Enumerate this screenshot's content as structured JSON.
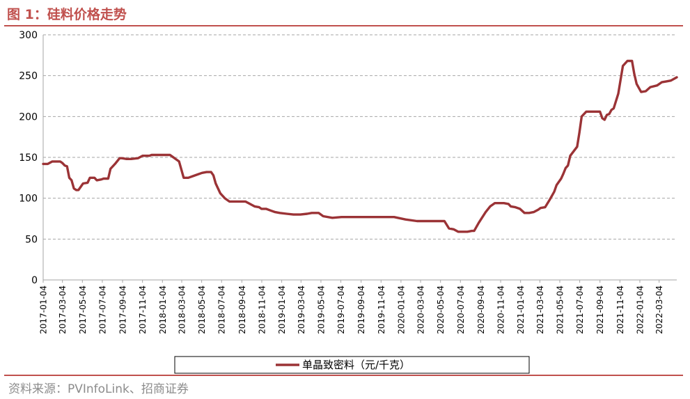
{
  "figure": {
    "title": "图 1：硅料价格走势",
    "source": "资料来源：PVInfoLink、招商证券"
  },
  "colors": {
    "series": "#9b3336",
    "accent": "#c0504d",
    "grid": "#a6a6a6"
  },
  "chart_data": {
    "type": "line",
    "title": "",
    "xlabel": "",
    "ylabel": "",
    "ylim": [
      0,
      300
    ],
    "yticks": [
      0,
      50,
      100,
      150,
      200,
      250,
      300
    ],
    "xlim": [
      "2017-01-04",
      "2022-04-27"
    ],
    "x_tick_labels": [
      "2017-01-04",
      "2017-03-04",
      "2017-05-04",
      "2017-07-04",
      "2017-09-04",
      "2017-11-04",
      "2018-01-04",
      "2018-03-04",
      "2018-05-04",
      "2018-07-04",
      "2018-09-04",
      "2018-11-04",
      "2019-01-04",
      "2019-03-04",
      "2019-05-04",
      "2019-07-04",
      "2019-09-04",
      "2019-11-04",
      "2020-01-04",
      "2020-03-04",
      "2020-05-04",
      "2020-07-04",
      "2020-09-04",
      "2020-11-04",
      "2021-01-04",
      "2021-03-04",
      "2021-05-04",
      "2021-07-04",
      "2021-09-04",
      "2021-11-04",
      "2022-01-04",
      "2022-03-04"
    ],
    "grid": "horizontal dashed",
    "legend": "bottom",
    "series": [
      {
        "name": "单晶致密料（元/千克）",
        "x": [
          "2017-01-04",
          "2017-01-18",
          "2017-02-01",
          "2017-02-25",
          "2017-03-04",
          "2017-03-11",
          "2017-03-18",
          "2017-03-25",
          "2017-04-01",
          "2017-04-08",
          "2017-04-15",
          "2017-04-22",
          "2017-05-06",
          "2017-05-20",
          "2017-05-27",
          "2017-06-10",
          "2017-06-17",
          "2017-07-01",
          "2017-07-08",
          "2017-07-22",
          "2017-07-29",
          "2017-08-12",
          "2017-08-26",
          "2017-09-02",
          "2017-09-16",
          "2017-09-30",
          "2017-10-21",
          "2017-11-04",
          "2017-11-25",
          "2017-12-02",
          "2018-01-13",
          "2018-01-27",
          "2018-02-03",
          "2018-02-24",
          "2018-03-03",
          "2018-03-10",
          "2018-03-24",
          "2018-04-07",
          "2018-04-21",
          "2018-05-05",
          "2018-05-19",
          "2018-06-02",
          "2018-06-09",
          "2018-06-16",
          "2018-06-30",
          "2018-07-14",
          "2018-07-28",
          "2018-08-25",
          "2018-09-08",
          "2018-09-15",
          "2018-09-29",
          "2018-10-13",
          "2018-10-27",
          "2018-11-03",
          "2018-11-17",
          "2018-12-01",
          "2018-12-15",
          "2018-12-29",
          "2019-01-19",
          "2019-02-09",
          "2019-02-23",
          "2019-03-02",
          "2019-03-23",
          "2019-04-06",
          "2019-04-13",
          "2019-04-27",
          "2019-05-11",
          "2019-06-08",
          "2019-07-06",
          "2019-08-03",
          "2019-09-07",
          "2019-10-05",
          "2019-10-26",
          "2019-11-02",
          "2019-11-16",
          "2019-11-30",
          "2019-12-14",
          "2020-01-18",
          "2020-02-22",
          "2020-03-21",
          "2020-04-11",
          "2020-04-25",
          "2020-05-02",
          "2020-05-16",
          "2020-05-30",
          "2020-06-13",
          "2020-06-27",
          "2020-07-04",
          "2020-07-11",
          "2020-07-25",
          "2020-08-08",
          "2020-08-15",
          "2020-08-29",
          "2020-09-19",
          "2020-10-03",
          "2020-10-17",
          "2020-10-31",
          "2020-11-14",
          "2020-11-28",
          "2020-12-05",
          "2020-12-19",
          "2021-01-02",
          "2021-01-16",
          "2021-01-30",
          "2021-02-13",
          "2021-02-27",
          "2021-03-06",
          "2021-03-20",
          "2021-04-03",
          "2021-04-17",
          "2021-04-24",
          "2021-05-08",
          "2021-05-15",
          "2021-05-22",
          "2021-05-29",
          "2021-06-05",
          "2021-06-26",
          "2021-07-03",
          "2021-07-10",
          "2021-07-24",
          "2021-08-07",
          "2021-08-21",
          "2021-09-04",
          "2021-09-11",
          "2021-09-18",
          "2021-09-25",
          "2021-10-02",
          "2021-10-09",
          "2021-10-16",
          "2021-10-30",
          "2021-11-13",
          "2021-11-27",
          "2021-12-04",
          "2021-12-11",
          "2021-12-18",
          "2021-12-25",
          "2022-01-08",
          "2022-01-22",
          "2022-02-05",
          "2022-02-26",
          "2022-03-12",
          "2022-03-26",
          "2022-04-09",
          "2022-04-27"
        ],
        "values": [
          142,
          142,
          145,
          145,
          143,
          140,
          139,
          125,
          122,
          112,
          110,
          110,
          118,
          119,
          125,
          125,
          122,
          123,
          124,
          124,
          136,
          142,
          149,
          149,
          148,
          148,
          149,
          152,
          152,
          153,
          153,
          153,
          151,
          145,
          135,
          125,
          125,
          127,
          129,
          131,
          132,
          132,
          128,
          118,
          106,
          100,
          96,
          96,
          96,
          96,
          93,
          90,
          89,
          87,
          87,
          85,
          83,
          82,
          81,
          80,
          80,
          80,
          81,
          82,
          82,
          82,
          78,
          76,
          77,
          77,
          77,
          77,
          77,
          77,
          77,
          77,
          77,
          74,
          72,
          72,
          72,
          72,
          72,
          72,
          63,
          62,
          59,
          59,
          59,
          59,
          60,
          60,
          70,
          83,
          90,
          94,
          94,
          94,
          93,
          90,
          89,
          87,
          82,
          82,
          83,
          86,
          88,
          89,
          98,
          108,
          116,
          124,
          130,
          137,
          140,
          152,
          163,
          180,
          200,
          206,
          206,
          206,
          206,
          198,
          196,
          202,
          203,
          208,
          210,
          228,
          262,
          268,
          268,
          268,
          252,
          240,
          230,
          231,
          236,
          238,
          242,
          243,
          244,
          248
        ]
      }
    ]
  }
}
